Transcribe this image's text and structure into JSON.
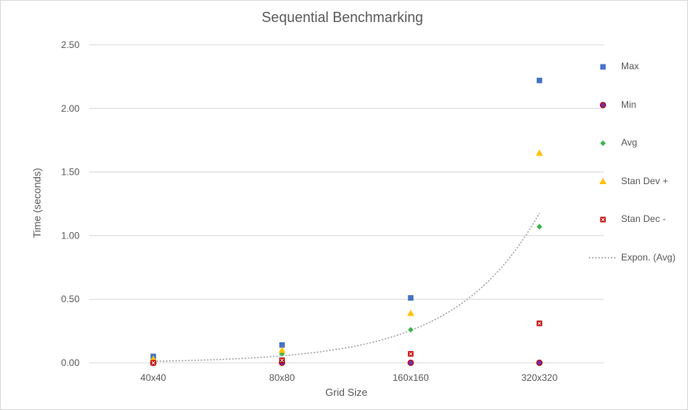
{
  "chart_data": {
    "type": "scatter",
    "title": "Sequential Benchmarking",
    "xlabel": "Grid Size",
    "ylabel": "Time (seconds)",
    "categories": [
      "40x40",
      "80x80",
      "160x160",
      "320x320"
    ],
    "ylim": [
      0,
      2.5
    ],
    "yticks": [
      "0.00",
      "0.50",
      "1.00",
      "1.50",
      "2.00",
      "2.50"
    ],
    "grid": true,
    "legend_position": "right",
    "series": [
      {
        "name": "Max",
        "marker": "square",
        "color": "#4472c4",
        "values": [
          0.05,
          0.14,
          0.51,
          2.22
        ]
      },
      {
        "name": "Min",
        "marker": "circle",
        "color": "#7030a0",
        "values": [
          0.0,
          0.0,
          0.0,
          0.0
        ]
      },
      {
        "name": "Avg",
        "marker": "diamond",
        "color": "#3cb44b",
        "values": [
          0.01,
          0.07,
          0.26,
          1.07
        ]
      },
      {
        "name": "Stan Dev +",
        "marker": "triangle",
        "color": "#ffc000",
        "values": [
          0.03,
          0.1,
          0.39,
          1.65
        ]
      },
      {
        "name": "Stan Dec -",
        "marker": "xsquare",
        "color": "#c00000",
        "values": [
          0.0,
          0.02,
          0.07,
          0.31
        ]
      }
    ],
    "trendline": {
      "name": "Expon. (Avg)",
      "type": "exponential",
      "of_series": "Avg",
      "color": "#a6a6a6"
    }
  }
}
